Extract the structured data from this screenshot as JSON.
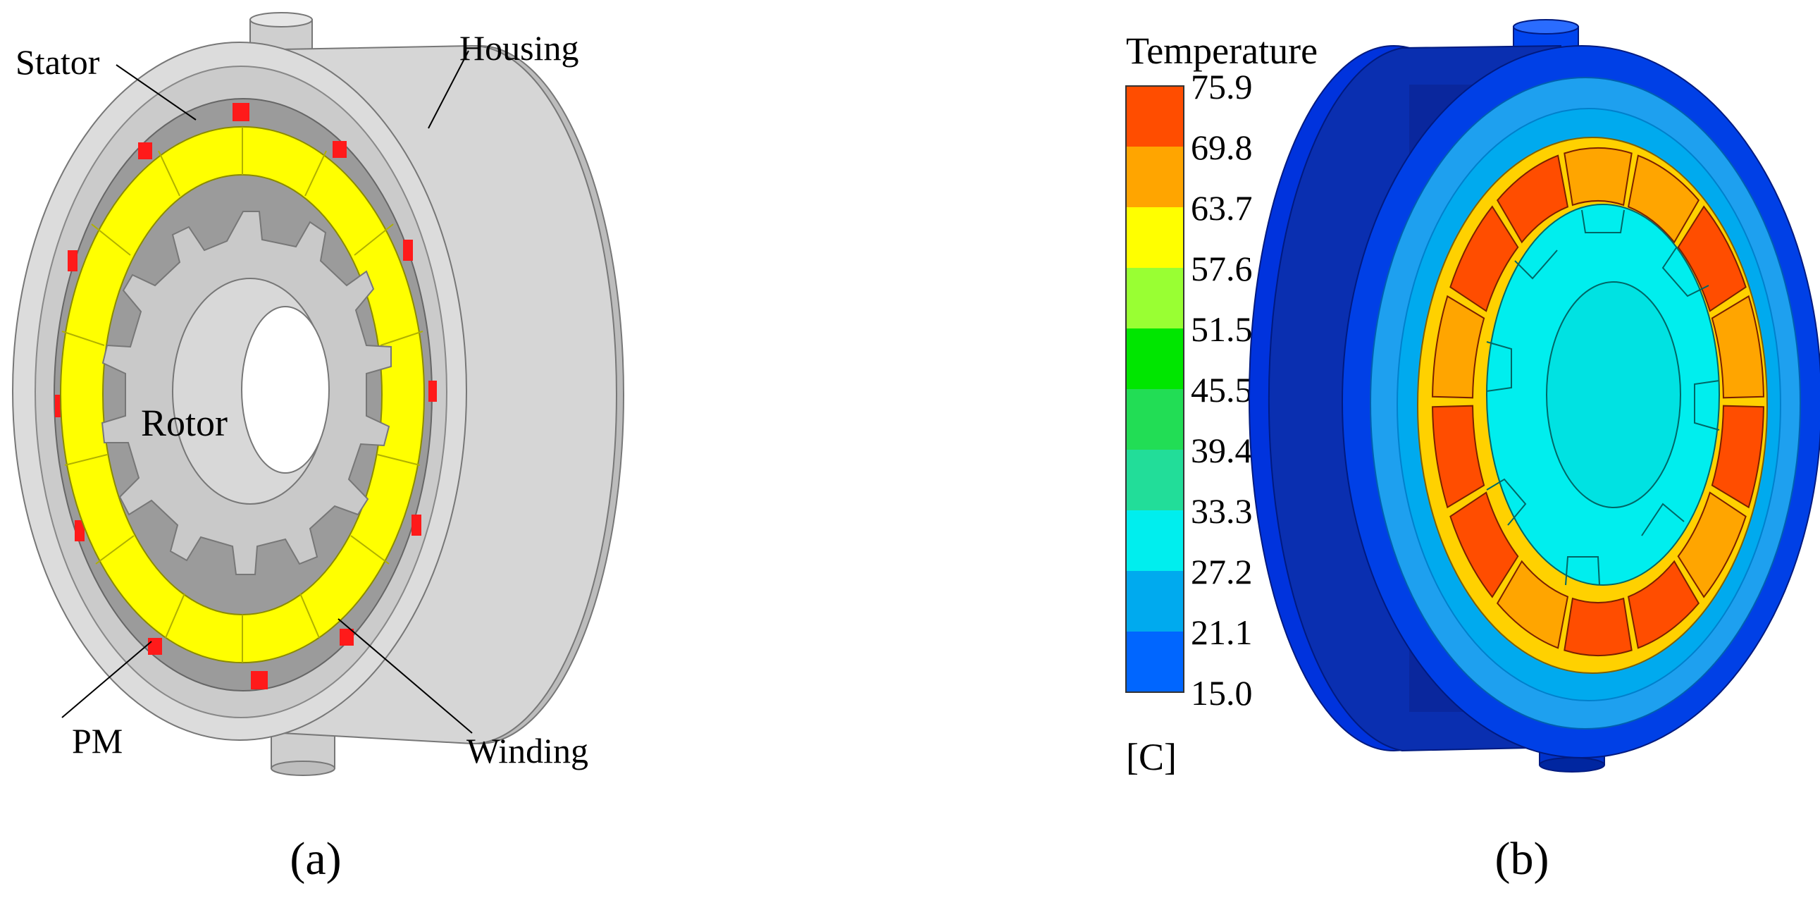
{
  "panel_a": {
    "caption": "(a)",
    "labels": {
      "stator": "Stator",
      "housing": "Housing",
      "rotor": "Rotor",
      "pm": "PM",
      "winding": "Winding"
    },
    "colors": {
      "housing": "#d4d4d4",
      "stator": "#b9b9b9",
      "winding": "#ffff00",
      "pm": "#ff0000",
      "rotor": "#c8c8c8"
    }
  },
  "panel_b": {
    "caption": "(b)",
    "legend": {
      "title": "Temperature",
      "unit": "[C]",
      "ticks": [
        "75.9",
        "69.8",
        "63.7",
        "57.6",
        "51.5",
        "45.5",
        "39.4",
        "33.3",
        "27.2",
        "21.1",
        "15.0"
      ],
      "band_colors": [
        "#ff4d00",
        "#ffa500",
        "#ffff00",
        "#99ff33",
        "#00e600",
        "#22dd55",
        "#22dd99",
        "#00eeee",
        "#00aaee",
        "#0066ff"
      ]
    },
    "colors": {
      "housing_dark": "#0a1a9a",
      "housing": "#0033dd",
      "housing_light": "#1ea0ef",
      "winding_hot": "#ff4d00",
      "winding_warm": "#ffa500",
      "stator": "#ffd100",
      "rotor": "#00eeee"
    }
  }
}
